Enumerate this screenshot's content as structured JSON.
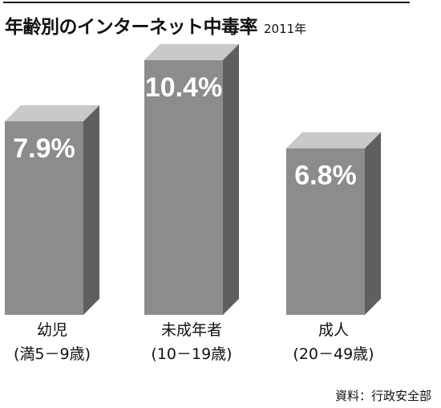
{
  "header": {
    "title": "年齢別のインターネット中毒率",
    "year": "2011年"
  },
  "chart_data": {
    "type": "bar",
    "title": "年齢別のインターネット中毒率",
    "subtitle": "2011年",
    "categories": [
      "幼児\n(満5－9歳)",
      "未成年者\n(10－19歳)",
      "成人\n(20－49歳)"
    ],
    "series": [
      {
        "values": [
          7.9,
          10.4,
          6.8
        ],
        "data_labels": [
          "7.9%",
          "10.4%",
          "6.8%"
        ]
      }
    ],
    "ylim": [
      0,
      11
    ],
    "unit": "%",
    "grid": false,
    "legend": "none"
  },
  "source": "資料：行政安全部",
  "colors": {
    "bar_front": "#8c8c8c",
    "bar_side": "#5f5f5f",
    "bar_top": "#c9c9c9",
    "label": "#ffffff",
    "text": "#111111"
  }
}
